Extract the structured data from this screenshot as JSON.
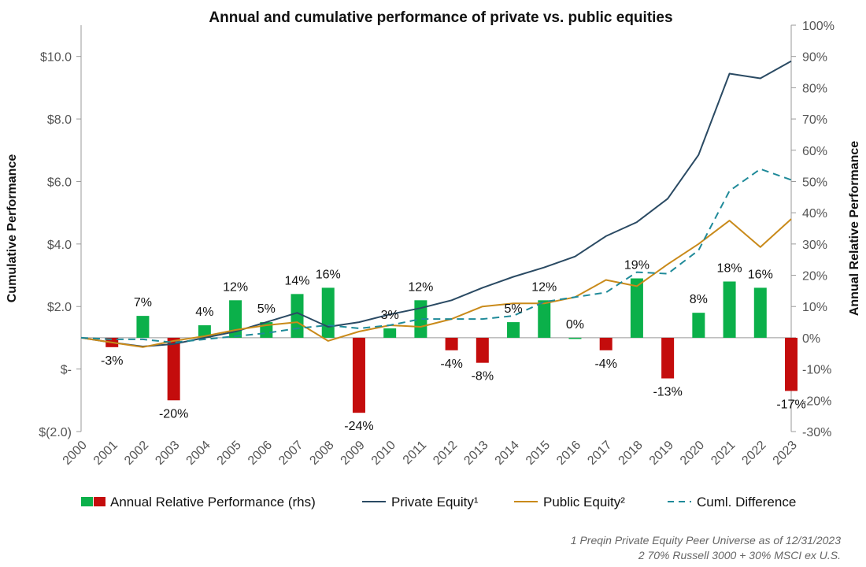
{
  "chart_data": {
    "type": "bar+line",
    "title": "Annual and cumulative performance of private vs. public equities",
    "ylabel": "Cumulative Performance",
    "y2label": "Annual Relative Performance",
    "ylim": [
      -2,
      11
    ],
    "y2lim": [
      -30,
      100
    ],
    "y_ticks": [
      "$(2.0)",
      "$-",
      "$2.0",
      "$4.0",
      "$6.0",
      "$8.0",
      "$10.0"
    ],
    "y_tick_values": [
      -2,
      0,
      2,
      4,
      6,
      8,
      10
    ],
    "y2_ticks": [
      "-30%",
      "-20%",
      "-10%",
      "0%",
      "10%",
      "20%",
      "30%",
      "40%",
      "50%",
      "60%",
      "70%",
      "80%",
      "90%",
      "100%"
    ],
    "y2_tick_values": [
      -30,
      -20,
      -10,
      0,
      10,
      20,
      30,
      40,
      50,
      60,
      70,
      80,
      90,
      100
    ],
    "categories": [
      "2000",
      "2001",
      "2002",
      "2003",
      "2004",
      "2005",
      "2006",
      "2007",
      "2008",
      "2009",
      "2010",
      "2011",
      "2012",
      "2013",
      "2014",
      "2015",
      "2016",
      "2017",
      "2018",
      "2019",
      "2020",
      "2021",
      "2022",
      "2023"
    ],
    "bars": {
      "name": "Annual Relative Performance (rhs)",
      "axis": "right",
      "values": [
        null,
        -3,
        7,
        -20,
        4,
        12,
        5,
        14,
        16,
        -24,
        3,
        12,
        -4,
        -8,
        5,
        12,
        0,
        -4,
        19,
        -13,
        8,
        18,
        16,
        -17
      ],
      "labels": [
        "",
        "-3%",
        "7%",
        "-20%",
        "4%",
        "12%",
        "5%",
        "14%",
        "16%",
        "-24%",
        "3%",
        "12%",
        "-4%",
        "-8%",
        "5%",
        "12%",
        "0%",
        "-4%",
        "19%",
        "-13%",
        "8%",
        "18%",
        "16%",
        "-17%"
      ],
      "positive_color": "#0bb04a",
      "negative_color": "#c40c0c"
    },
    "series": [
      {
        "name": "Private Equity¹",
        "axis": "left",
        "style": "solid",
        "color": "#2a4a63",
        "values": [
          1.0,
          0.85,
          0.72,
          0.8,
          1.0,
          1.2,
          1.5,
          1.8,
          1.35,
          1.5,
          1.75,
          1.95,
          2.2,
          2.6,
          2.95,
          3.25,
          3.6,
          4.25,
          4.7,
          5.45,
          6.85,
          9.45,
          9.3,
          9.85
        ]
      },
      {
        "name": "Public Equity²",
        "axis": "left",
        "style": "solid",
        "color": "#c98a1a",
        "values": [
          1.0,
          0.85,
          0.7,
          0.9,
          1.05,
          1.25,
          1.4,
          1.5,
          0.9,
          1.2,
          1.4,
          1.35,
          1.6,
          2.0,
          2.1,
          2.1,
          2.3,
          2.85,
          2.65,
          3.35,
          4.0,
          4.75,
          3.9,
          4.8
        ]
      },
      {
        "name": "Cuml. Difference",
        "axis": "left",
        "style": "dashed",
        "color": "#1f8a99",
        "values": [
          1.0,
          0.95,
          0.95,
          0.85,
          0.95,
          1.05,
          1.15,
          1.3,
          1.4,
          1.3,
          1.4,
          1.6,
          1.6,
          1.6,
          1.7,
          2.15,
          2.3,
          2.45,
          3.1,
          3.05,
          3.8,
          5.7,
          6.4,
          6.05
        ]
      }
    ],
    "legend_position": "bottom",
    "grid": false
  },
  "footnotes": [
    "1 Preqin Private Equity Peer Universe as of 12/31/2023",
    "2 70% Russell 3000 + 30% MSCI ex U.S."
  ]
}
